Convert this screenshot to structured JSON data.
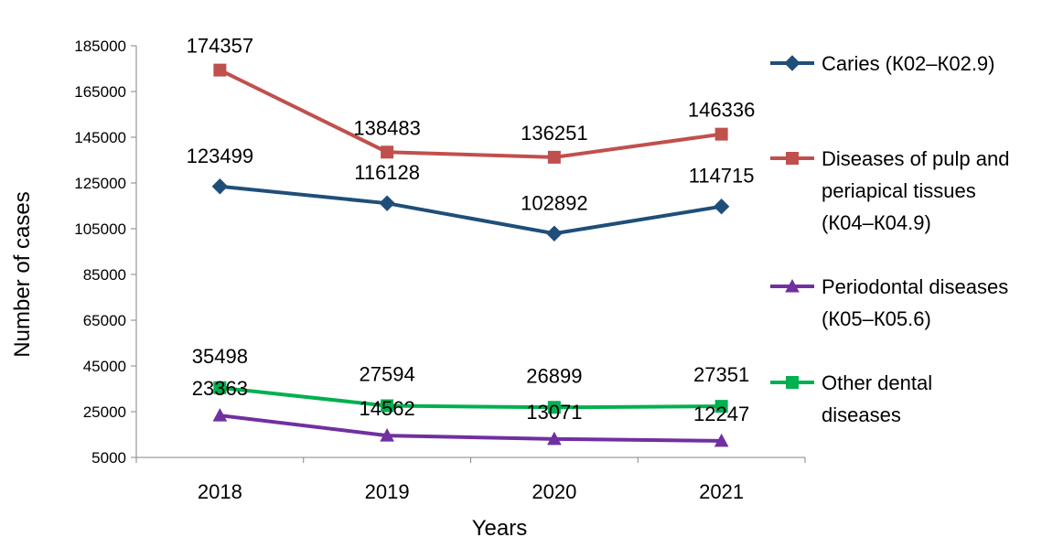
{
  "chart_data": {
    "type": "line",
    "x": [
      "2018",
      "2019",
      "2020",
      "2021"
    ],
    "xlabel": "Years",
    "ylabel": "Number of cases",
    "ylim": [
      5000,
      185000
    ],
    "yticks": [
      185000,
      165000,
      145000,
      125000,
      105000,
      85000,
      65000,
      45000,
      25000,
      5000
    ],
    "ytick_labels": [
      "185000",
      "165000",
      "145000",
      "125000",
      "105000",
      "85000",
      "65000",
      "45000",
      "25000",
      "5000"
    ],
    "grid": false,
    "legend_position": "right",
    "series": [
      {
        "name": "Caries (К02–К02.9)",
        "legend_lines": [
          "Caries (К02–К02.9)"
        ],
        "values": [
          123499,
          116128,
          102892,
          114715
        ],
        "labels": [
          "123499",
          "116128",
          "102892",
          "114715"
        ],
        "color": "#1F4E79",
        "marker": "diamond"
      },
      {
        "name": "Diseases of pulp and periapical tissues (К04–К04.9)",
        "legend_lines": [
          "Diseases of pulp and",
          "periapical tissues",
          "(К04–К04.9)"
        ],
        "values": [
          174357,
          138483,
          136251,
          146336
        ],
        "labels": [
          "174357",
          "138483",
          "136251",
          "146336"
        ],
        "color": "#C0504D",
        "marker": "square"
      },
      {
        "name": "Periodontal diseases (К05–К05.6)",
        "legend_lines": [
          "Periodontal diseases",
          "(К05–К05.6)"
        ],
        "values": [
          23363,
          14562,
          13071,
          12247
        ],
        "labels": [
          "23363",
          "14562",
          "13071",
          "12247"
        ],
        "color": "#7030A0",
        "marker": "triangle"
      },
      {
        "name": "Other dental diseases",
        "legend_lines": [
          "Other dental",
          "diseases"
        ],
        "values": [
          35498,
          27594,
          26899,
          27351
        ],
        "labels": [
          "35498",
          "27594",
          "26899",
          "27351"
        ],
        "color": "#00B050",
        "marker": "square"
      }
    ]
  }
}
